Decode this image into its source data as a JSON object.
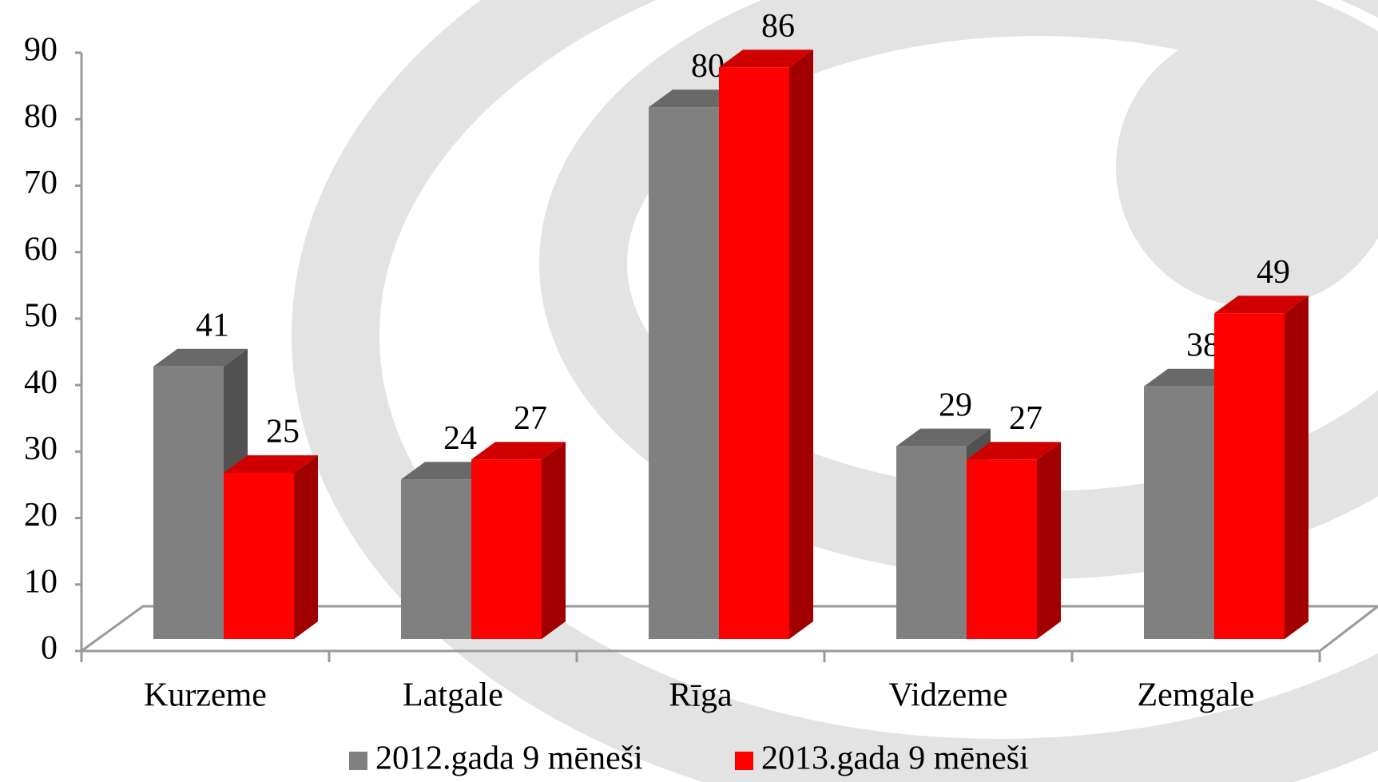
{
  "chart_data": {
    "type": "bar3d",
    "categories": [
      "Kurzeme",
      "Latgale",
      "Rīga",
      "Vidzeme",
      "Zemgale"
    ],
    "series": [
      {
        "name": "2012.gada 9 mēneši",
        "color": "#808080",
        "values": [
          41,
          24,
          80,
          29,
          38
        ]
      },
      {
        "name": "2013.gada 9 mēneši",
        "color": "#ff0000",
        "values": [
          25,
          27,
          86,
          27,
          49
        ]
      }
    ],
    "ylim": [
      0,
      90
    ],
    "yticks": [
      0,
      10,
      20,
      30,
      40,
      50,
      60,
      70,
      80,
      90
    ],
    "legend": "bottom"
  }
}
